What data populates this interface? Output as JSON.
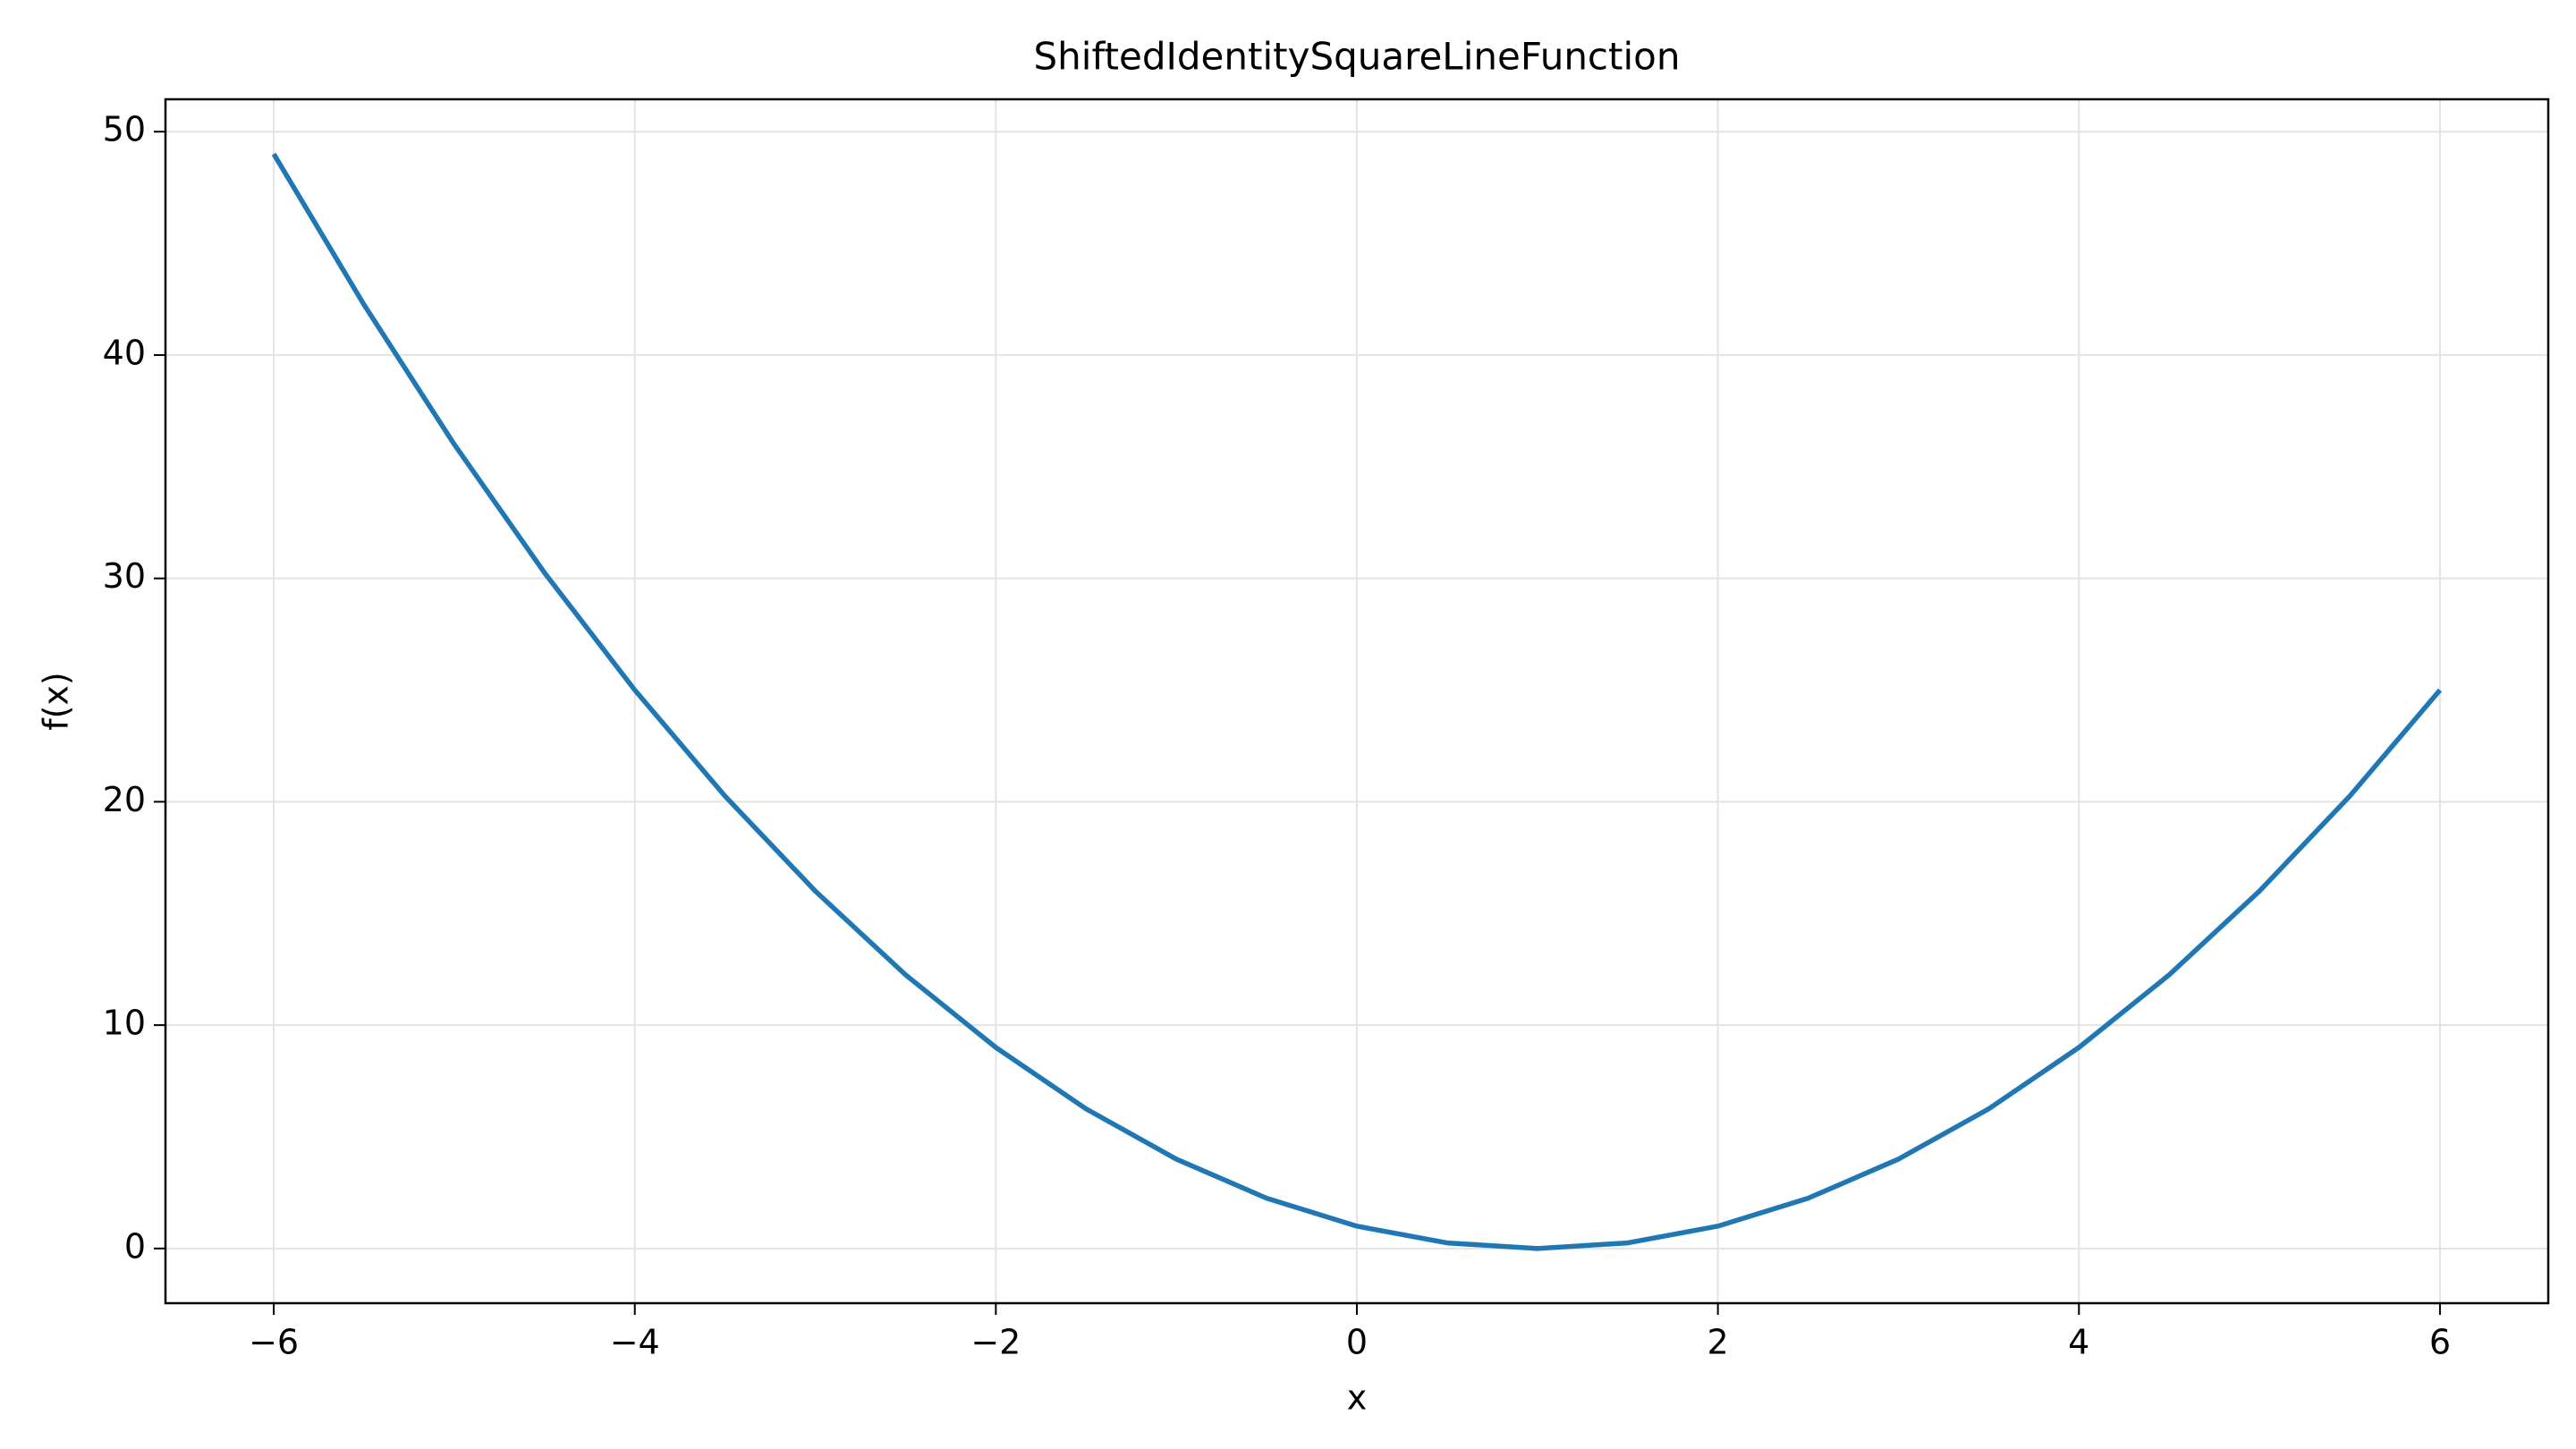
{
  "chart_data": {
    "type": "line",
    "title": "ShiftedIdentitySquareLineFunction",
    "x_label": "x",
    "y_label": "f(x)",
    "x": [
      -6,
      -5.5,
      -5,
      -4.5,
      -4,
      -3.5,
      -3,
      -2.5,
      -2,
      -1.5,
      -1,
      -0.5,
      0,
      0.5,
      1,
      1.5,
      2,
      2.5,
      3,
      3.5,
      4,
      4.5,
      5,
      5.5,
      6
    ],
    "series": [
      {
        "color": "#1f77b4",
        "values": [
          49,
          42.25,
          36,
          30.25,
          25,
          20.25,
          16,
          12.25,
          9,
          6.25,
          4,
          2.25,
          1,
          0.25,
          0,
          0.25,
          1,
          2.25,
          4,
          6.25,
          9,
          12.25,
          16,
          20.25,
          25
        ]
      }
    ],
    "xlim": [
      -6.6,
      6.6
    ],
    "ylim": [
      -2.45,
      51.45
    ],
    "xticks": [
      {
        "value": -6,
        "label": "−6"
      },
      {
        "value": -4,
        "label": "−4"
      },
      {
        "value": -2,
        "label": "−2"
      },
      0,
      2,
      4,
      6
    ],
    "yticks": [
      0,
      10,
      20,
      30,
      40,
      50
    ],
    "grid": true
  }
}
